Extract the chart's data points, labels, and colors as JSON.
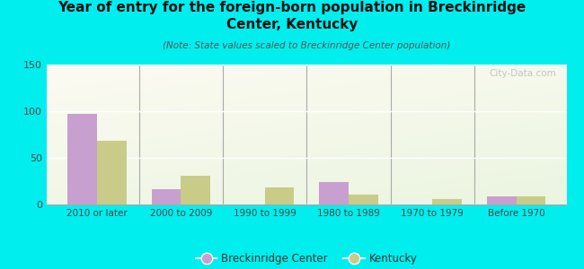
{
  "title": "Year of entry for the foreign-born population in Breckinridge\nCenter, Kentucky",
  "subtitle": "(Note: State values scaled to Breckinridge Center population)",
  "categories": [
    "2010 or later",
    "2000 to 2009",
    "1990 to 1999",
    "1980 to 1989",
    "1970 to 1979",
    "Before 1970"
  ],
  "breckinridge": [
    97,
    16,
    0,
    24,
    0,
    9
  ],
  "kentucky": [
    68,
    31,
    18,
    11,
    6,
    9
  ],
  "breckinridge_color": "#c8a0d0",
  "kentucky_color": "#c8cc88",
  "background_color": "#00eeee",
  "ylim": [
    0,
    150
  ],
  "yticks": [
    0,
    50,
    100,
    150
  ],
  "watermark": "City-Data.com",
  "title_fontsize": 11,
  "subtitle_fontsize": 7.5,
  "legend_fontsize": 8.5,
  "bar_width": 0.35
}
